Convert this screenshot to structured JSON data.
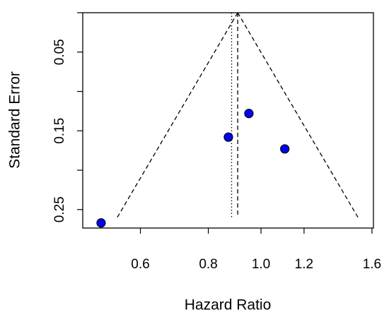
{
  "chart_data": {
    "type": "scatter",
    "x_label": "Hazard Ratio",
    "y_label": "Standard Error",
    "x": [
      0.508,
      0.871,
      0.95,
      1.106
    ],
    "values": [
      0.267,
      0.158,
      0.128,
      0.173
    ],
    "color": "#0000ff",
    "x_log": true,
    "y_reversed": true,
    "xlim": [
      0.47,
      1.61
    ],
    "ylim": [
      0,
      0.2735
    ],
    "xticks": [
      0.6,
      0.8,
      {
        "value": 1.0,
        "label": "1.0"
      },
      1.2,
      1.6
    ],
    "yticks": [
      0.05,
      0.15,
      0.25
    ],
    "y_minor_ticks": [
      0,
      0.1,
      0.2
    ],
    "estimate": 0.906,
    "reference_line": 0.883,
    "funnel": {
      "se": 0.26,
      "lower": 0.544,
      "upper": 1.508
    }
  }
}
